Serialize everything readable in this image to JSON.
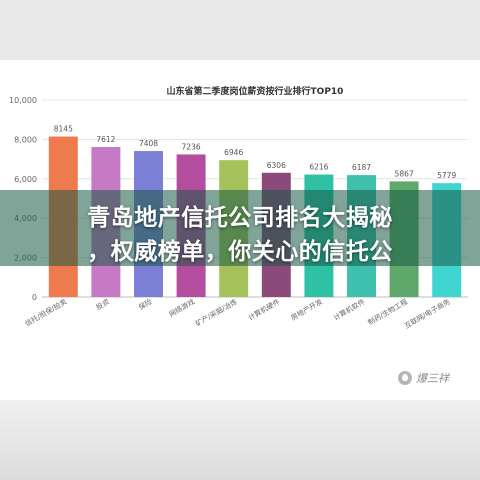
{
  "banner": {
    "line1": "青岛地产信托公司排名大揭秘",
    "line2": "，权威榜单，你关心的信托公"
  },
  "watermark": {
    "text": "爆三祥",
    "icon": "avatar-icon"
  },
  "chart_data": {
    "type": "bar",
    "title": "山东省第二季度岗位薪资按行业排行TOP10",
    "xlabel": "",
    "ylabel": "",
    "ylim": [
      0,
      10000
    ],
    "yticks": [
      "0",
      "2,000",
      "4,000",
      "6,000",
      "8,000",
      "10,000"
    ],
    "grid": true,
    "categories": [
      "信托/担保/拍卖",
      "投资",
      "保险",
      "网络游戏",
      "矿产/采掘/冶炼",
      "计算机硬件",
      "房地产开发",
      "计算机软件",
      "制药/生物工程",
      "互联网/电子商务"
    ],
    "values": [
      8145,
      7612,
      7408,
      7236,
      6946,
      6306,
      6216,
      6187,
      5867,
      5779
    ],
    "value_labels": [
      "8145",
      "7612",
      "7408",
      "7236",
      "6946",
      "6306",
      "6216",
      "6187",
      "5867",
      "5779"
    ],
    "colors": [
      "#ef7a4d",
      "#c679c4",
      "#7c7fd6",
      "#b44ca0",
      "#a5c15a",
      "#8b4a7a",
      "#2fc1a6",
      "#3fbfae",
      "#5ea86c",
      "#3fd6d0"
    ]
  }
}
